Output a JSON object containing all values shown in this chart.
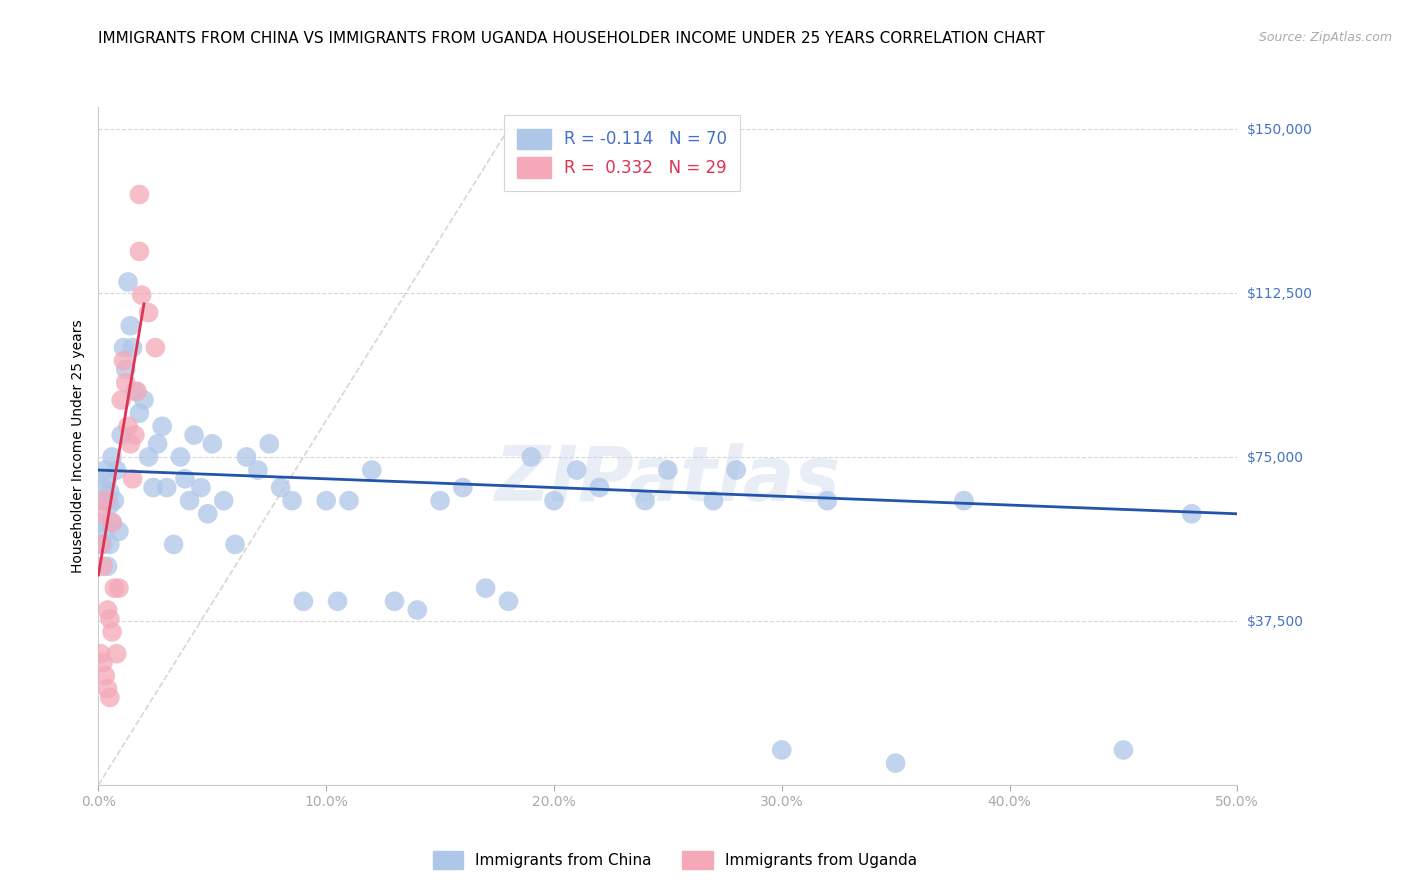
{
  "title": "IMMIGRANTS FROM CHINA VS IMMIGRANTS FROM UGANDA HOUSEHOLDER INCOME UNDER 25 YEARS CORRELATION CHART",
  "source": "Source: ZipAtlas.com",
  "ylabel": "Householder Income Under 25 years",
  "xlim": [
    0.0,
    0.5
  ],
  "ylim": [
    0,
    155000
  ],
  "yticks": [
    0,
    37500,
    75000,
    112500,
    150000
  ],
  "xticks": [
    0.0,
    0.1,
    0.2,
    0.3,
    0.4,
    0.5
  ],
  "xtick_labels": [
    "0.0%",
    "10.0%",
    "20.0%",
    "30.0%",
    "40.0%",
    "50.0%"
  ],
  "china_color": "#aec6e8",
  "uganda_color": "#f4a8b8",
  "china_line_color": "#2255aa",
  "uganda_line_color": "#dd3355",
  "ref_line_color": "#d0d0d0",
  "china_R": -0.114,
  "china_N": 70,
  "uganda_R": 0.332,
  "uganda_N": 29,
  "watermark": "ZIPatlas",
  "axis_color": "#4472c4",
  "yaxis_text_color": "#4472c4",
  "title_fontsize": 11,
  "label_fontsize": 10,
  "tick_fontsize": 10,
  "china_x": [
    0.001,
    0.001,
    0.002,
    0.002,
    0.003,
    0.003,
    0.004,
    0.004,
    0.005,
    0.005,
    0.005,
    0.006,
    0.006,
    0.007,
    0.008,
    0.009,
    0.01,
    0.011,
    0.012,
    0.013,
    0.014,
    0.015,
    0.016,
    0.018,
    0.02,
    0.022,
    0.024,
    0.026,
    0.028,
    0.03,
    0.033,
    0.036,
    0.038,
    0.04,
    0.042,
    0.045,
    0.048,
    0.05,
    0.055,
    0.06,
    0.065,
    0.07,
    0.075,
    0.08,
    0.085,
    0.09,
    0.1,
    0.105,
    0.11,
    0.12,
    0.13,
    0.14,
    0.15,
    0.16,
    0.17,
    0.18,
    0.19,
    0.2,
    0.21,
    0.22,
    0.24,
    0.25,
    0.27,
    0.28,
    0.3,
    0.32,
    0.35,
    0.38,
    0.45,
    0.48
  ],
  "china_y": [
    65000,
    60000,
    68000,
    55000,
    72000,
    58000,
    70000,
    50000,
    67000,
    64000,
    55000,
    75000,
    60000,
    65000,
    72000,
    58000,
    80000,
    100000,
    95000,
    115000,
    105000,
    100000,
    90000,
    85000,
    88000,
    75000,
    68000,
    78000,
    82000,
    68000,
    55000,
    75000,
    70000,
    65000,
    80000,
    68000,
    62000,
    78000,
    65000,
    55000,
    75000,
    72000,
    78000,
    68000,
    65000,
    42000,
    65000,
    42000,
    65000,
    72000,
    42000,
    40000,
    65000,
    68000,
    45000,
    42000,
    75000,
    65000,
    72000,
    68000,
    65000,
    72000,
    65000,
    72000,
    8000,
    65000,
    5000,
    65000,
    8000,
    62000
  ],
  "uganda_x": [
    0.001,
    0.001,
    0.001,
    0.002,
    0.002,
    0.003,
    0.003,
    0.004,
    0.004,
    0.005,
    0.005,
    0.006,
    0.006,
    0.007,
    0.008,
    0.009,
    0.01,
    0.011,
    0.012,
    0.013,
    0.014,
    0.015,
    0.016,
    0.017,
    0.018,
    0.018,
    0.019,
    0.022,
    0.025
  ],
  "uganda_y": [
    62000,
    55000,
    30000,
    50000,
    28000,
    65000,
    25000,
    40000,
    22000,
    38000,
    20000,
    60000,
    35000,
    45000,
    30000,
    45000,
    88000,
    97000,
    92000,
    82000,
    78000,
    70000,
    80000,
    90000,
    135000,
    122000,
    112000,
    108000,
    100000
  ]
}
